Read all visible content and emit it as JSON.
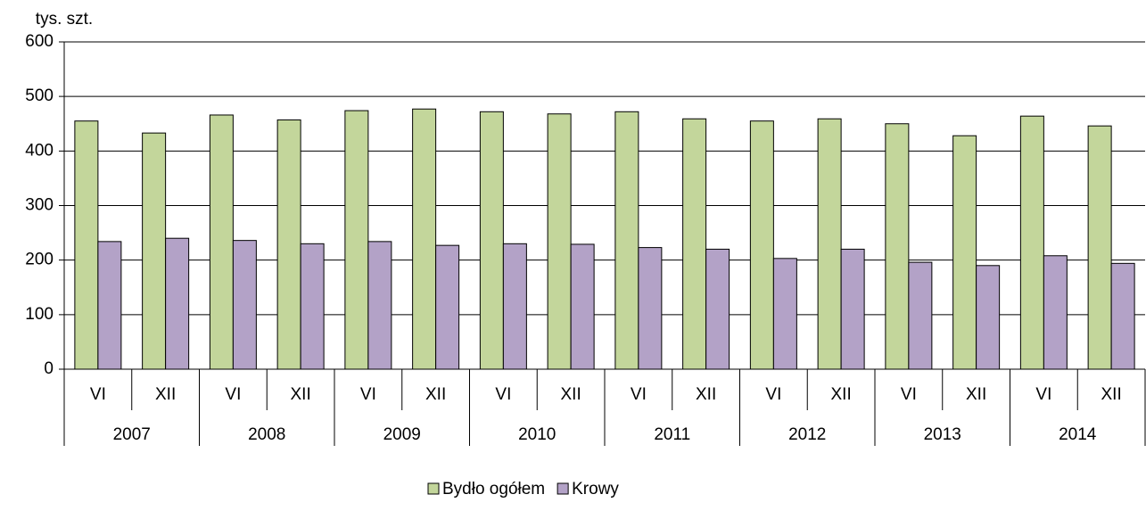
{
  "chart_data": {
    "type": "bar",
    "y_label": "tys. szt.",
    "categories": [
      "VI",
      "XII",
      "VI",
      "XII",
      "VI",
      "XII",
      "VI",
      "XII",
      "VI",
      "XII",
      "VI",
      "XII",
      "VI",
      "XII",
      "VI",
      "XII"
    ],
    "years": [
      "2007",
      "2008",
      "2009",
      "2010",
      "2011",
      "2012",
      "2013",
      "2014"
    ],
    "series": [
      {
        "name": "Bydło ogółem",
        "color": "#c3d69b",
        "values": [
          455,
          433,
          466,
          457,
          474,
          477,
          472,
          468,
          472,
          459,
          455,
          459,
          450,
          428,
          464,
          446
        ]
      },
      {
        "name": "Krowy",
        "color": "#b3a2c7",
        "values": [
          234,
          240,
          236,
          230,
          234,
          227,
          230,
          229,
          223,
          220,
          203,
          220,
          196,
          190,
          208,
          194
        ]
      }
    ],
    "ylim": [
      0,
      600
    ],
    "yticks": [
      0,
      100,
      200,
      300,
      400,
      500,
      600
    ],
    "grid": true,
    "legend": "bottom"
  }
}
